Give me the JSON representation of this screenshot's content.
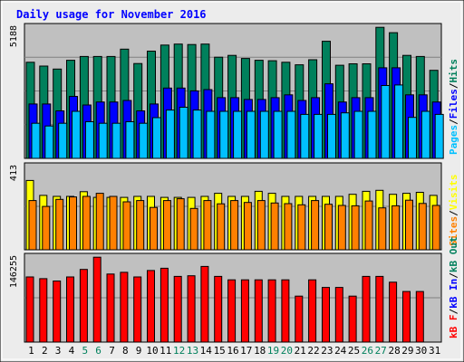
{
  "colors": {
    "frame_bg": "#ECECEC",
    "panel_bg": "#C0C0C0",
    "title": "#0000FF",
    "hits": "#00805C",
    "files": "#0000FF",
    "pages": "#00C0FF",
    "visits": "#FFFF00",
    "sites": "#FF8000",
    "kbin": "#FF0000",
    "weekend_label": "#00805C"
  },
  "chart_data": [
    {
      "type": "bar",
      "title": "Daily usage for November 2016",
      "ymax_label": "5188",
      "ylim": [
        0,
        5188
      ],
      "legend_right": [
        "Pages",
        "Files",
        "Hits"
      ],
      "legend_sep": "/",
      "categories": [
        "1",
        "2",
        "3",
        "4",
        "5",
        "6",
        "7",
        "8",
        "9",
        "10",
        "11",
        "12",
        "13",
        "14",
        "15",
        "16",
        "17",
        "18",
        "19",
        "20",
        "21",
        "22",
        "23",
        "24",
        "25",
        "26",
        "27",
        "28",
        "29",
        "30",
        "31"
      ],
      "weekend_days": [
        "5",
        "6",
        "12",
        "13",
        "19",
        "20",
        "26",
        "27"
      ],
      "series": [
        {
          "name": "Hits",
          "values": [
            3800,
            3650,
            3530,
            3880,
            4030,
            4030,
            4030,
            4320,
            3750,
            4240,
            4480,
            4520,
            4500,
            4520,
            4000,
            4070,
            3950,
            3880,
            3860,
            3800,
            3700,
            3900,
            4630,
            3680,
            3740,
            3740,
            5180,
            4970,
            4070,
            4030,
            3480
          ]
        },
        {
          "name": "Files",
          "values": [
            2150,
            2150,
            1880,
            2450,
            2110,
            2230,
            2230,
            2290,
            1880,
            2150,
            2780,
            2780,
            2670,
            2720,
            2400,
            2400,
            2330,
            2330,
            2400,
            2510,
            2290,
            2400,
            2950,
            2230,
            2400,
            2400,
            3580,
            3580,
            2510,
            2510,
            2230
          ]
        },
        {
          "name": "Pages",
          "values": [
            1390,
            1280,
            1390,
            1860,
            1450,
            1390,
            1390,
            1450,
            1390,
            1610,
            1910,
            2020,
            1910,
            1860,
            1860,
            1860,
            1860,
            1860,
            1860,
            1860,
            1740,
            1740,
            1740,
            1800,
            1860,
            1860,
            2880,
            2900,
            1620,
            1860,
            1740
          ]
        }
      ]
    },
    {
      "type": "bar",
      "ymax_label": "413",
      "ylim": [
        0,
        413
      ],
      "legend_right": [
        "Sites",
        "Visits"
      ],
      "legend_sep": "/",
      "categories": [
        "1",
        "2",
        "3",
        "4",
        "5",
        "6",
        "7",
        "8",
        "9",
        "10",
        "11",
        "12",
        "13",
        "14",
        "15",
        "16",
        "17",
        "18",
        "19",
        "20",
        "21",
        "22",
        "23",
        "24",
        "25",
        "26",
        "27",
        "28",
        "29",
        "30",
        "31"
      ],
      "series": [
        {
          "name": "Visits",
          "values": [
            344,
            270,
            265,
            265,
            288,
            260,
            260,
            260,
            265,
            265,
            260,
            260,
            260,
            265,
            280,
            265,
            265,
            290,
            280,
            265,
            265,
            265,
            265,
            265,
            275,
            290,
            295,
            275,
            280,
            285,
            270
          ]
        },
        {
          "name": "Sites",
          "values": [
            244,
            215,
            250,
            262,
            265,
            280,
            265,
            238,
            244,
            210,
            244,
            253,
            205,
            244,
            228,
            244,
            235,
            244,
            232,
            229,
            223,
            244,
            226,
            220,
            218,
            242,
            208,
            218,
            246,
            230,
            220
          ]
        }
      ]
    },
    {
      "type": "bar",
      "ymax_label": "146255",
      "ylim": [
        0,
        146255
      ],
      "legend_right": [
        "kB F",
        "kB In",
        "kB Out"
      ],
      "legend_sep": "/",
      "categories": [
        "1",
        "2",
        "3",
        "4",
        "5",
        "6",
        "7",
        "8",
        "9",
        "10",
        "11",
        "12",
        "13",
        "14",
        "15",
        "16",
        "17",
        "18",
        "19",
        "20",
        "21",
        "22",
        "23",
        "24",
        "25",
        "26",
        "27",
        "28",
        "29",
        "30",
        "31"
      ],
      "series": [
        {
          "name": "kB F",
          "values": [
            112000,
            109000,
            105000,
            112000,
            125000,
            146000,
            117000,
            120000,
            112000,
            123000,
            127000,
            113000,
            114000,
            130000,
            113000,
            107000,
            107000,
            107000,
            107000,
            107000,
            79000,
            107000,
            94000,
            94000,
            79000,
            113000,
            113000,
            103000,
            87000,
            87000,
            0
          ]
        }
      ]
    }
  ]
}
